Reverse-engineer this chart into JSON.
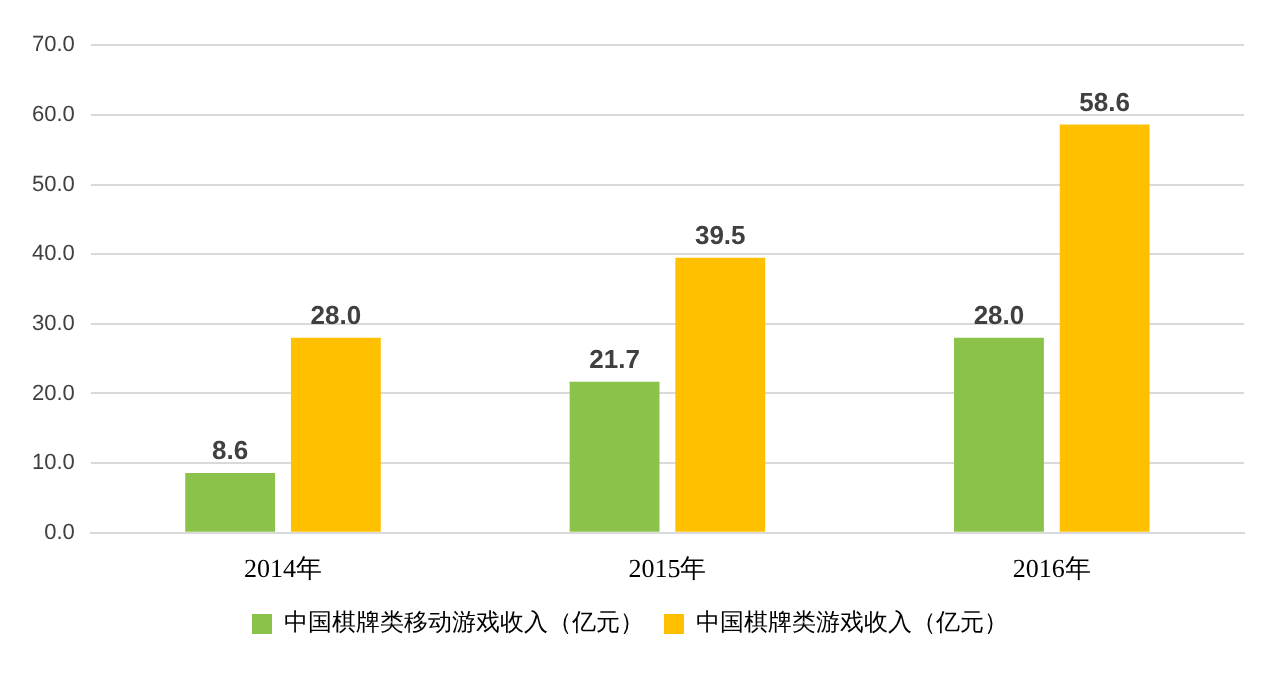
{
  "chart_data": {
    "type": "bar",
    "categories": [
      "2014年",
      "2015年",
      "2016年"
    ],
    "series": [
      {
        "name": "中国棋牌类移动游戏收入（亿元）",
        "color": "#8bc34a",
        "values": [
          8.6,
          21.7,
          28.0
        ],
        "value_labels": [
          "8.6",
          "21.7",
          "28.0"
        ]
      },
      {
        "name": "中国棋牌类游戏收入（亿元）",
        "color": "#ffc000",
        "values": [
          28.0,
          39.5,
          58.6
        ],
        "value_labels": [
          "28.0",
          "39.5",
          "58.6"
        ]
      }
    ],
    "ylim": [
      0,
      70
    ],
    "yticks": [
      {
        "value": 0,
        "label": "0.0"
      },
      {
        "value": 10,
        "label": "10.0"
      },
      {
        "value": 20,
        "label": "20.0"
      },
      {
        "value": 30,
        "label": "30.0"
      },
      {
        "value": 40,
        "label": "40.0"
      },
      {
        "value": 50,
        "label": "50.0"
      },
      {
        "value": 60,
        "label": "60.0"
      },
      {
        "value": 70,
        "label": "70.0"
      }
    ],
    "grid": "y",
    "legend": "bottom"
  }
}
